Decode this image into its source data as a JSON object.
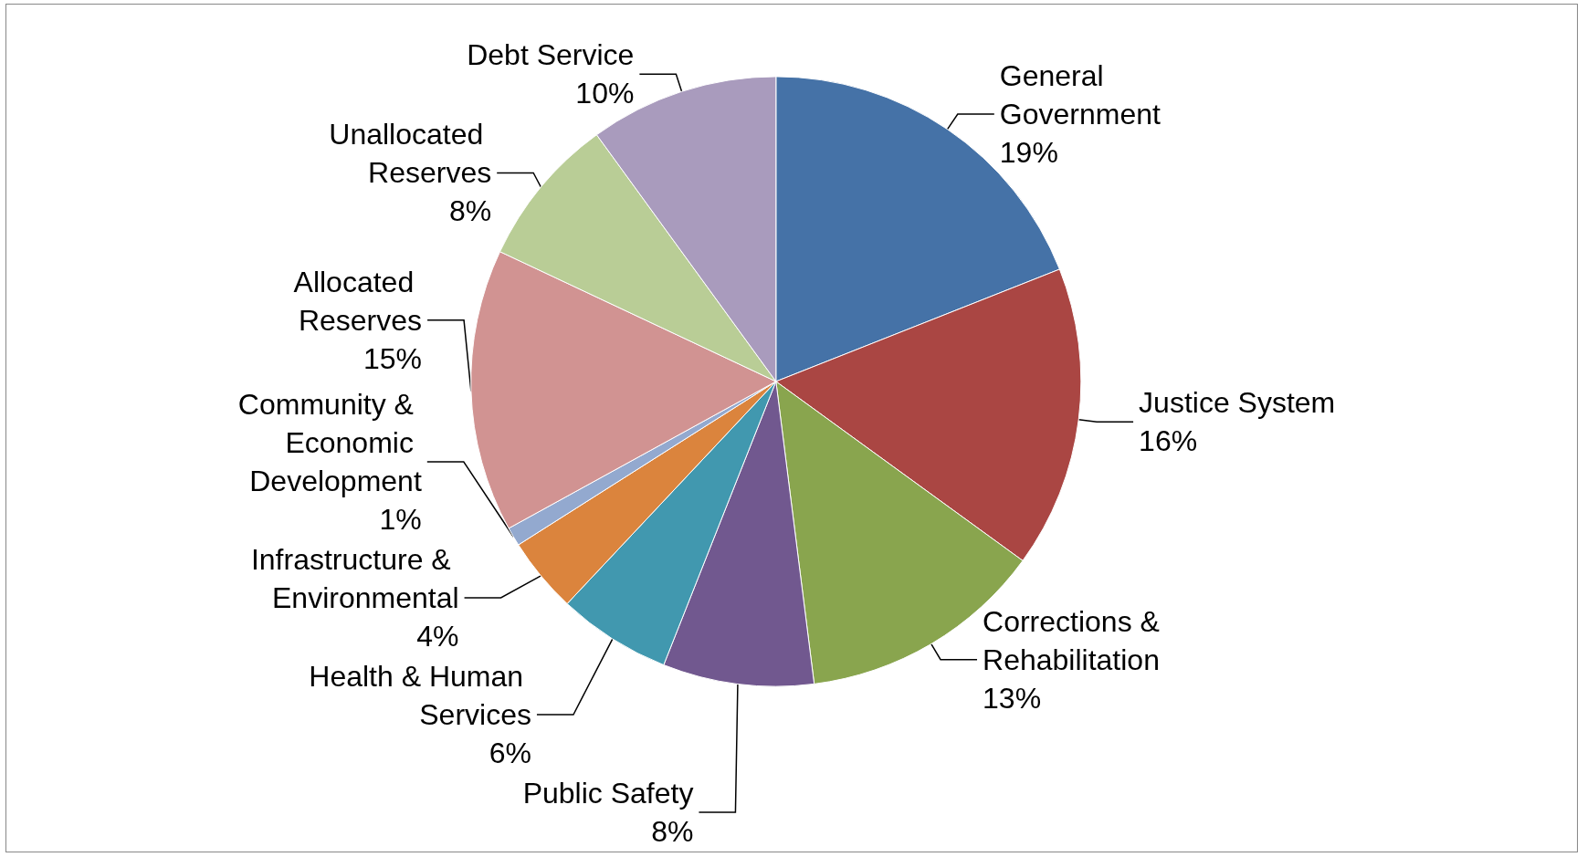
{
  "chart_data": {
    "type": "pie",
    "categories": [
      "General Government",
      "Justice System",
      "Corrections & Rehabilitation",
      "Public Safety",
      "Health & Human Services",
      "Infrastructure & Environmental",
      "Community & Economic Development",
      "Allocated Reserves",
      "Unallocated Reserves",
      "Debt Service"
    ],
    "values": [
      19,
      16,
      13,
      8,
      6,
      4,
      1,
      15,
      8,
      10
    ],
    "value_labels": [
      "19%",
      "16%",
      "13%",
      "8%",
      "6%",
      "4%",
      "1%",
      "15%",
      "8%",
      "10%"
    ],
    "colors": [
      "#4572a7",
      "#aa4643",
      "#89a54e",
      "#71588f",
      "#4198af",
      "#db843d",
      "#93a9cf",
      "#d19392",
      "#b9cd96",
      "#a99bbd"
    ],
    "legend": false
  }
}
